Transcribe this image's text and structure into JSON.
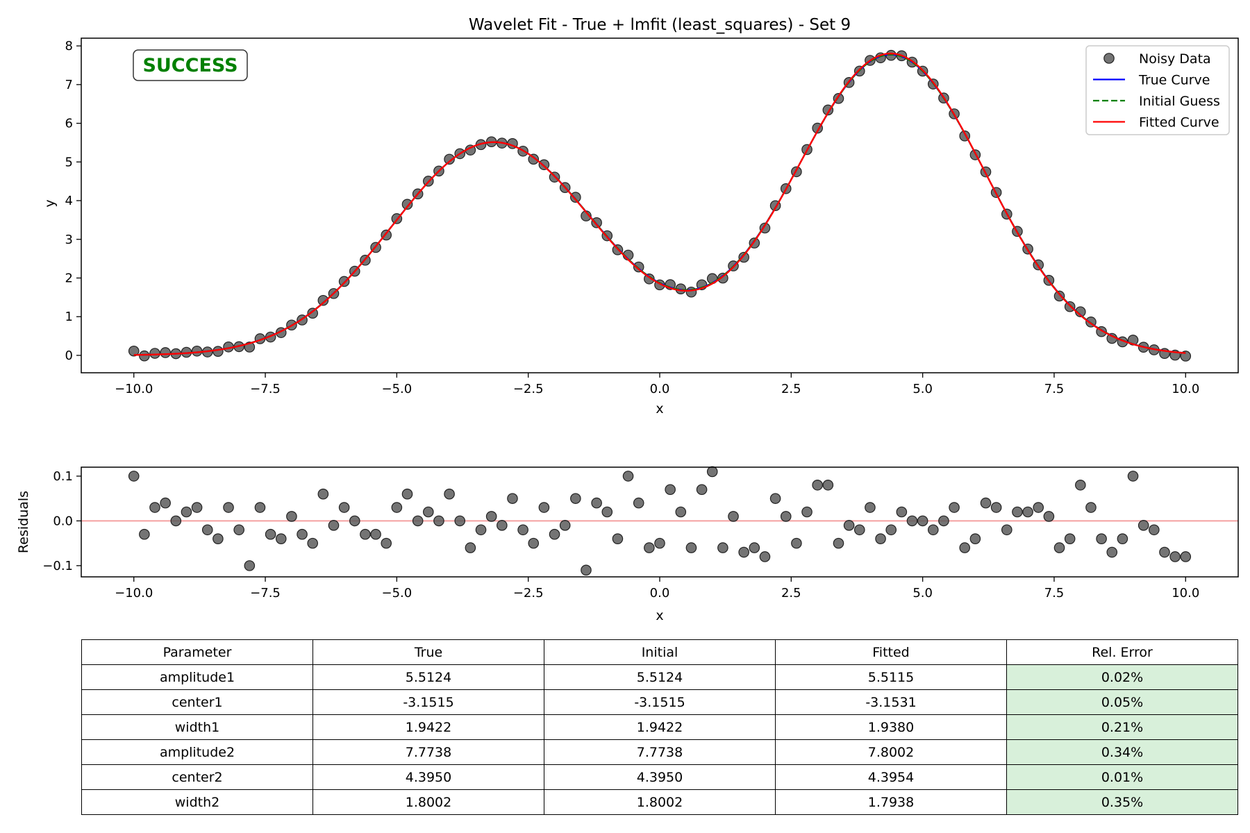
{
  "chart_data": [
    {
      "type": "scatter",
      "title": "Wavelet Fit - True + lmfit (least_squares) - Set 9",
      "xlabel": "x",
      "ylabel": "y",
      "xlim": [
        -11,
        11
      ],
      "ylim": [
        -0.45,
        8.2
      ],
      "xticks": [
        -10.0,
        -7.5,
        -5.0,
        -2.5,
        0.0,
        2.5,
        5.0,
        7.5,
        10.0
      ],
      "xtick_labels": [
        "−10.0",
        "−7.5",
        "−5.0",
        "−2.5",
        "0.0",
        "2.5",
        "5.0",
        "7.5",
        "10.0"
      ],
      "yticks": [
        0,
        1,
        2,
        3,
        4,
        5,
        6,
        7,
        8
      ],
      "ytick_labels": [
        "0",
        "1",
        "2",
        "3",
        "4",
        "5",
        "6",
        "7",
        "8"
      ],
      "grid": false,
      "legend_position": "top-right",
      "annotation": "SUCCESS",
      "model": "amplitude1*exp(-(x-center1)^2/(2*width1^2)) + amplitude2*exp(-(x-center2)^2/(2*width2^2))",
      "x_range": [
        -10,
        10
      ],
      "n_points": 101,
      "noisy_data_residuals": [
        0.1,
        -0.03,
        0.03,
        0.04,
        0.0,
        0.02,
        0.03,
        -0.02,
        -0.04,
        0.03,
        -0.02,
        -0.1,
        0.03,
        -0.03,
        -0.04,
        0.01,
        -0.03,
        -0.05,
        0.06,
        -0.01,
        0.03,
        0.0,
        -0.03,
        -0.03,
        -0.05,
        0.03,
        0.06,
        0.0,
        0.02,
        0.0,
        0.06,
        0.0,
        -0.06,
        -0.02,
        0.01,
        -0.01,
        0.05,
        -0.02,
        -0.05,
        0.03,
        -0.03,
        -0.01,
        0.05,
        -0.11,
        0.04,
        0.02,
        -0.04,
        0.1,
        0.04,
        -0.06,
        -0.05,
        0.07,
        0.02,
        -0.06,
        0.07,
        0.11,
        -0.06,
        0.01,
        -0.07,
        -0.06,
        -0.08,
        0.05,
        0.01,
        -0.05,
        0.02,
        0.08,
        0.08,
        -0.05,
        -0.01,
        -0.02,
        0.03,
        -0.04,
        -0.02,
        0.02,
        0.0,
        0.0,
        -0.02,
        0.0,
        0.03,
        -0.06,
        -0.04,
        0.04,
        0.03,
        -0.02,
        0.02,
        0.02,
        0.03,
        0.01,
        -0.06,
        -0.04,
        0.08,
        0.03,
        -0.04,
        -0.07,
        -0.04,
        0.1,
        -0.01,
        -0.02,
        -0.07,
        -0.08,
        -0.08
      ],
      "series": [
        {
          "name": "Noisy Data",
          "kind": "scatter",
          "color": "#555555"
        },
        {
          "name": "True Curve",
          "kind": "line",
          "color": "#0000ff",
          "params": {
            "amplitude1": 5.5124,
            "center1": -3.1515,
            "width1": 1.9422,
            "amplitude2": 7.7738,
            "center2": 4.395,
            "width2": 1.8002
          }
        },
        {
          "name": "Initial Guess",
          "kind": "dashed-line",
          "color": "#008000",
          "params": {
            "amplitude1": 5.5124,
            "center1": -3.1515,
            "width1": 1.9422,
            "amplitude2": 7.7738,
            "center2": 4.395,
            "width2": 1.8002
          }
        },
        {
          "name": "Fitted Curve",
          "kind": "line",
          "color": "#ff0000",
          "params": {
            "amplitude1": 5.5115,
            "center1": -3.1531,
            "width1": 1.938,
            "amplitude2": 7.8002,
            "center2": 4.3954,
            "width2": 1.7938
          }
        }
      ]
    },
    {
      "type": "scatter",
      "xlabel": "x",
      "ylabel": "Residuals",
      "xlim": [
        -11,
        11
      ],
      "ylim": [
        -0.125,
        0.12
      ],
      "xticks": [
        -10.0,
        -7.5,
        -5.0,
        -2.5,
        0.0,
        2.5,
        5.0,
        7.5,
        10.0
      ],
      "xtick_labels": [
        "−10.0",
        "−7.5",
        "−5.0",
        "−2.5",
        "0.0",
        "2.5",
        "5.0",
        "7.5",
        "10.0"
      ],
      "yticks": [
        0.1,
        0.0,
        -0.1
      ],
      "ytick_labels": [
        "0.1",
        "0.0",
        "−0.1"
      ],
      "reference_line": 0.0,
      "reference_color": "#f4a0a0",
      "point_color": "#555555"
    },
    {
      "type": "table",
      "columns": [
        "Parameter",
        "True",
        "Initial",
        "Fitted",
        "Rel. Error"
      ],
      "rows": [
        [
          "amplitude1",
          "5.5124",
          "5.5124",
          "5.5115",
          "0.02%"
        ],
        [
          "center1",
          "-3.1515",
          "-3.1515",
          "-3.1531",
          "0.05%"
        ],
        [
          "width1",
          "1.9422",
          "1.9422",
          "1.9380",
          "0.21%"
        ],
        [
          "amplitude2",
          "7.7738",
          "7.7738",
          "7.8002",
          "0.34%"
        ],
        [
          "center2",
          "4.3950",
          "4.3950",
          "4.3954",
          "0.01%"
        ],
        [
          "width2",
          "1.8002",
          "1.8002",
          "1.7938",
          "0.35%"
        ]
      ],
      "error_cell_color": "#d8f0da"
    }
  ]
}
